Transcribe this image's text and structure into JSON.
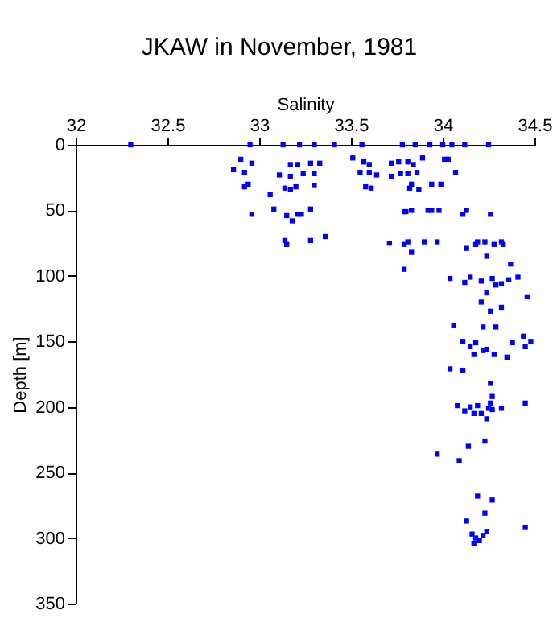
{
  "chart_data": {
    "type": "scatter",
    "title": "JKAW in November, 1981",
    "xlabel": "Salinity",
    "ylabel": "Depth [m]",
    "x": [
      32.3,
      32.95,
      33.13,
      33.22,
      33.3,
      33.41,
      33.56,
      33.78,
      33.85,
      33.93,
      34.0,
      34.05,
      34.12,
      34.25,
      32.9,
      32.96,
      32.86,
      32.92,
      32.94,
      32.92,
      33.06,
      32.96,
      33.11,
      33.17,
      33.21,
      33.17,
      33.24,
      33.28,
      33.33,
      33.3,
      33.14,
      33.17,
      33.2,
      33.3,
      33.08,
      33.15,
      33.18,
      33.21,
      33.23,
      33.28,
      33.14,
      33.15,
      33.28,
      33.36,
      33.51,
      33.57,
      33.6,
      33.55,
      33.6,
      33.64,
      33.58,
      33.61,
      33.72,
      33.76,
      33.72,
      33.77,
      33.81,
      33.84,
      33.89,
      33.81,
      33.86,
      33.83,
      33.87,
      33.82,
      33.94,
      33.99,
      34.01,
      34.03,
      34.07,
      33.79,
      33.8,
      33.83,
      33.92,
      33.94,
      33.98,
      34.11,
      34.13,
      34.26,
      33.71,
      33.79,
      33.81,
      33.83,
      33.9,
      33.97,
      34.13,
      34.18,
      34.19,
      34.23,
      34.28,
      34.32,
      34.33,
      34.24,
      34.37,
      33.79,
      34.04,
      34.12,
      34.15,
      34.21,
      34.27,
      34.29,
      34.32,
      34.36,
      34.41,
      34.24,
      34.46,
      34.21,
      34.26,
      34.32,
      34.06,
      34.22,
      34.29,
      34.44,
      34.48,
      34.45,
      34.38,
      34.11,
      34.18,
      34.15,
      34.22,
      34.24,
      34.17,
      34.28,
      34.35,
      34.04,
      34.11,
      34.26,
      34.27,
      34.45,
      34.08,
      34.12,
      34.15,
      34.19,
      34.26,
      34.25,
      34.27,
      34.32,
      34.17,
      34.21,
      34.24,
      34.23,
      34.14,
      33.97,
      34.09,
      34.19,
      34.27,
      34.23,
      34.13,
      34.16,
      34.18,
      34.2,
      34.22,
      34.17,
      34.24,
      34.45
    ],
    "series": [
      {
        "color": "#0000ff",
        "values": [
          0,
          0,
          0,
          0,
          0,
          0,
          0,
          0,
          0,
          0,
          0,
          0,
          0,
          0,
          11,
          14,
          19,
          21,
          30,
          32,
          38,
          53,
          23,
          15,
          15,
          24,
          22,
          14,
          14,
          22,
          33,
          34,
          32,
          31,
          49,
          54,
          58,
          53,
          53,
          49,
          73,
          76,
          73,
          70,
          10,
          13,
          15,
          21,
          21,
          23,
          32,
          33,
          14,
          13,
          24,
          22,
          13,
          15,
          10,
          22,
          21,
          30,
          34,
          33,
          30,
          30,
          11,
          11,
          21,
          51,
          51,
          50,
          50,
          50,
          50,
          53,
          50,
          53,
          75,
          76,
          74,
          82,
          74,
          74,
          79,
          76,
          74,
          74,
          76,
          74,
          76,
          85,
          91,
          95,
          102,
          105,
          101,
          104,
          102,
          107,
          106,
          103,
          101,
          113,
          116,
          120,
          127,
          124,
          138,
          139,
          139,
          146,
          150,
          154,
          151,
          150,
          151,
          154,
          157,
          156,
          160,
          160,
          162,
          171,
          172,
          182,
          192,
          197,
          199,
          203,
          200,
          199,
          197,
          201,
          202,
          201,
          205,
          205,
          209,
          226,
          230,
          236,
          241,
          268,
          271,
          281,
          287,
          297,
          300,
          302,
          298,
          304,
          295,
          292
        ]
      }
    ],
    "xlim": [
      32,
      34.5
    ],
    "xticks": [
      32,
      32.5,
      33,
      33.5,
      34,
      34.5
    ],
    "ylim": [
      350,
      0
    ],
    "yticks": [
      0,
      50,
      100,
      150,
      200,
      250,
      300,
      350
    ],
    "marker": "square",
    "grid": false,
    "legend": false
  }
}
